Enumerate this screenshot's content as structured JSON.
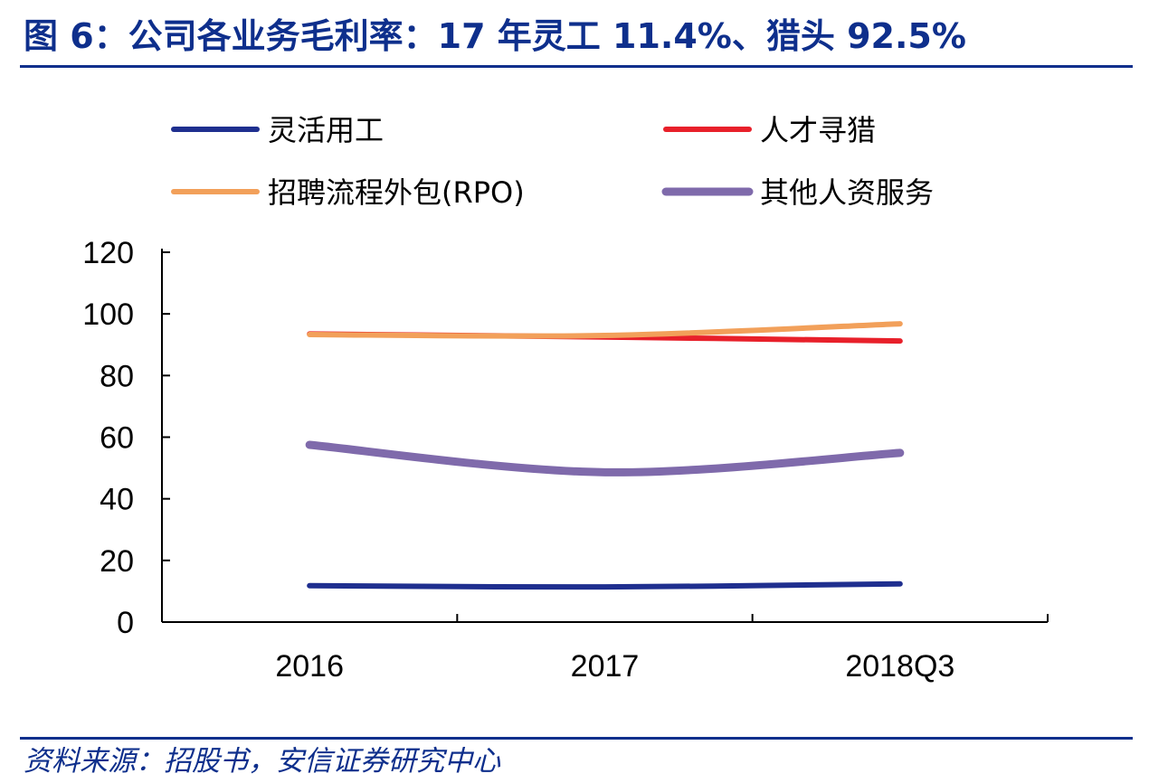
{
  "figure": {
    "title": "图 6：公司各业务毛利率：17 年灵工 11.4%、猎头 92.5%",
    "source": "资料来源：招股书，安信证券研究中心"
  },
  "chart_data": {
    "type": "line",
    "categories": [
      "2016",
      "2017",
      "2018Q3"
    ],
    "ylim": [
      0,
      120
    ],
    "yticks": [
      0,
      20,
      40,
      60,
      80,
      100,
      120
    ],
    "grid": false,
    "legend_position": "top",
    "series": [
      {
        "name": "灵活用工",
        "color": "#1f2f8f",
        "values": [
          11.8,
          11.4,
          12.4
        ]
      },
      {
        "name": "人才寻猎",
        "color": "#e8202a",
        "values": [
          93.5,
          92.5,
          91.2
        ]
      },
      {
        "name": "招聘流程外包(RPO)",
        "color": "#f2a05a",
        "values": [
          93.3,
          93.0,
          96.8
        ]
      },
      {
        "name": "其他人资服务",
        "color": "#7f6aab",
        "values": [
          57.5,
          48.6,
          54.9
        ]
      }
    ]
  }
}
